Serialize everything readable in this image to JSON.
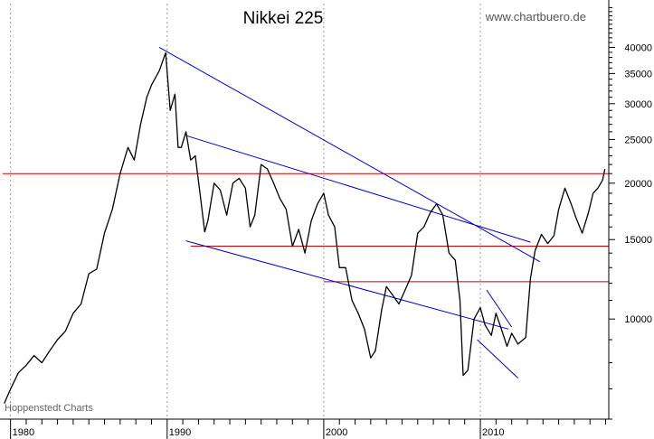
{
  "chart_data": {
    "type": "line",
    "title": "Nikkei 225",
    "watermark": "www.chartbuero.de",
    "credit": "Hoppenstedt Charts",
    "y_scale": "log",
    "xlim": [
      1979.5,
      2018.2
    ],
    "ylim": [
      6000,
      50000
    ],
    "x_ticks": [
      {
        "value": 1980,
        "label": "1980"
      },
      {
        "value": 1990,
        "label": "1990"
      },
      {
        "value": 2000,
        "label": "2000"
      },
      {
        "value": 2010,
        "label": "2010"
      }
    ],
    "y_ticks": [
      {
        "value": 10000,
        "label": "10000"
      },
      {
        "value": 15000,
        "label": "15000"
      },
      {
        "value": 20000,
        "label": "20000"
      },
      {
        "value": 25000,
        "label": "25000"
      },
      {
        "value": 30000,
        "label": "30000"
      },
      {
        "value": 35000,
        "label": "35000"
      },
      {
        "value": 40000,
        "label": "40000"
      }
    ],
    "y_minor_ticks": [
      6000,
      7000,
      8000,
      9000,
      11000,
      12000,
      13000,
      14000,
      16000,
      17000,
      18000,
      19000,
      21000,
      22000,
      23000,
      24000,
      26000,
      27000,
      28000,
      29000,
      31000,
      32000,
      33000,
      34000,
      36000,
      37000,
      38000,
      39000,
      41000,
      42000,
      43000,
      44000,
      45000,
      46000,
      47000,
      48000,
      49000
    ],
    "grid": {
      "x": true,
      "y": false
    },
    "series": [
      {
        "color": "#000000",
        "x": [
          1979.6,
          1980.0,
          1980.5,
          1981.0,
          1981.5,
          1982.0,
          1982.5,
          1983.0,
          1983.5,
          1984.0,
          1984.5,
          1985.0,
          1985.5,
          1986.0,
          1986.5,
          1987.0,
          1987.5,
          1987.9,
          1988.3,
          1988.7,
          1989.0,
          1989.5,
          1989.9,
          1990.2,
          1990.5,
          1990.7,
          1990.9,
          1991.2,
          1991.5,
          1991.8,
          1992.1,
          1992.4,
          1992.6,
          1993.0,
          1993.4,
          1993.8,
          1994.2,
          1994.6,
          1995.0,
          1995.3,
          1995.6,
          1996.0,
          1996.4,
          1996.8,
          1997.2,
          1997.6,
          1998.0,
          1998.4,
          1998.8,
          1999.2,
          1999.6,
          2000.0,
          2000.3,
          2000.7,
          2001.0,
          2001.4,
          2001.8,
          2002.2,
          2002.6,
          2003.0,
          2003.3,
          2003.7,
          2004.0,
          2004.4,
          2004.8,
          2005.2,
          2005.6,
          2006.0,
          2006.4,
          2006.8,
          2007.2,
          2007.6,
          2008.0,
          2008.4,
          2008.7,
          2008.9,
          2009.2,
          2009.6,
          2010.0,
          2010.3,
          2010.7,
          2011.0,
          2011.3,
          2011.7,
          2012.0,
          2012.4,
          2012.9,
          2013.2,
          2013.5,
          2013.9,
          2014.3,
          2014.7,
          2015.0,
          2015.4,
          2015.8,
          2016.1,
          2016.5,
          2016.9,
          2017.2,
          2017.5,
          2017.8,
          2017.95
        ],
        "values": [
          6500,
          7000,
          7600,
          7900,
          8300,
          8000,
          8500,
          9000,
          9400,
          10300,
          10800,
          12600,
          12900,
          15500,
          17500,
          21000,
          24000,
          22500,
          27000,
          31000,
          33000,
          35500,
          38900,
          29000,
          31500,
          24000,
          24000,
          26000,
          22500,
          23000,
          19000,
          15600,
          16500,
          20000,
          19300,
          17000,
          20000,
          20500,
          19500,
          16000,
          17000,
          22000,
          21500,
          20000,
          18500,
          17500,
          14500,
          15800,
          14000,
          16500,
          18000,
          19000,
          17000,
          16000,
          13000,
          13000,
          11000,
          10300,
          9500,
          8200,
          8500,
          10500,
          11800,
          11300,
          10800,
          11600,
          12500,
          15500,
          16000,
          17200,
          18000,
          17000,
          14000,
          13500,
          11000,
          7500,
          7700,
          10000,
          10600,
          9700,
          9200,
          10300,
          9600,
          8700,
          9300,
          8800,
          9100,
          12300,
          14200,
          15400,
          14700,
          15300,
          17500,
          19500,
          18000,
          16800,
          15500,
          17200,
          19000,
          19500,
          20300,
          21500
        ]
      }
    ],
    "trendlines": [
      {
        "color": "#0000c8",
        "x": [
          1989.5,
          2013.8
        ],
        "values": [
          40000,
          13400
        ]
      },
      {
        "color": "#0000c8",
        "x": [
          1991.2,
          2013.2
        ],
        "values": [
          25500,
          14800
        ]
      },
      {
        "color": "#0000c8",
        "x": [
          1991.2,
          2011.8
        ],
        "values": [
          14900,
          9500
        ]
      },
      {
        "color": "#0000c8",
        "x": [
          2010.4,
          2012.0
        ],
        "values": [
          11600,
          9600
        ]
      },
      {
        "color": "#0000c8",
        "x": [
          2009.8,
          2012.4
        ],
        "values": [
          9000,
          7400
        ]
      }
    ],
    "hlines": [
      {
        "color": "#cc0000",
        "value": 21000,
        "x": [
          1979.5,
          2018.2
        ]
      },
      {
        "color": "#cc0000",
        "value": 14500,
        "x": [
          1991.5,
          2018.2
        ]
      },
      {
        "color": "#cc0000",
        "value": 12100,
        "x": [
          2000.0,
          2018.2
        ]
      }
    ]
  }
}
